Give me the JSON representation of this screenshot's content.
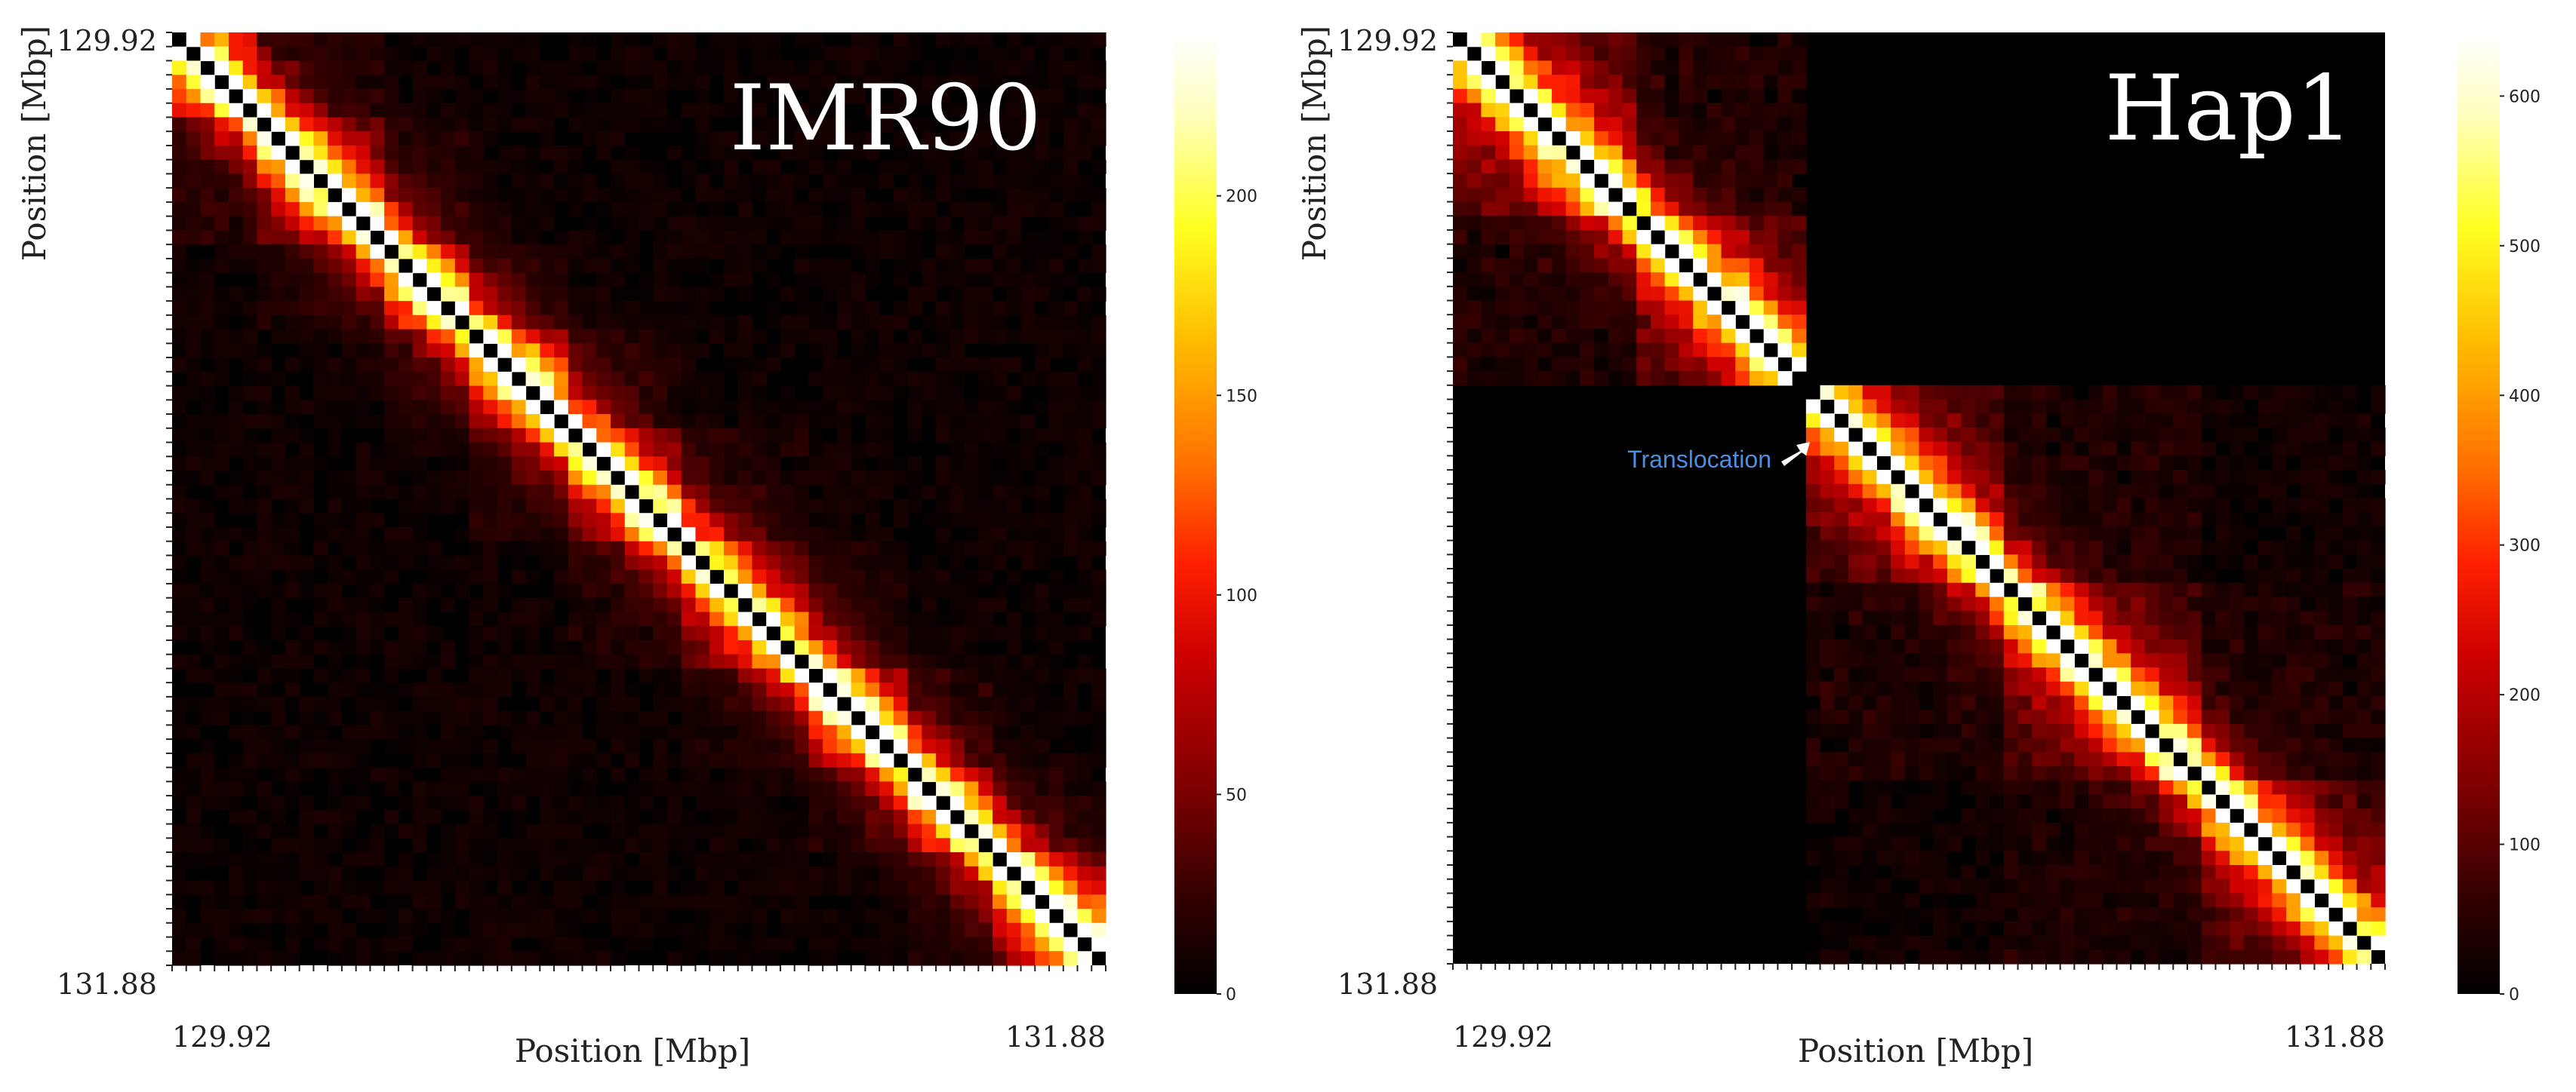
{
  "figure": {
    "panels": [
      {
        "title": "IMR90",
        "xlabel": "Position [Mbp]",
        "ylabel": "Position [Mbp]",
        "x_ticks": [
          "129.92",
          "131.88"
        ],
        "y_ticks": [
          "129.92",
          "131.88"
        ],
        "colorbar_ticks": [
          "0",
          "50",
          "100",
          "150",
          "200"
        ],
        "annotation": ""
      },
      {
        "title": "Hap1",
        "xlabel": "Position [Mbp]",
        "ylabel": "Position [Mbp]",
        "x_ticks": [
          "129.92",
          "131.88"
        ],
        "y_ticks": [
          "129.92",
          "131.88"
        ],
        "colorbar_ticks": [
          "0",
          "100",
          "200",
          "300",
          "400",
          "500",
          "600"
        ],
        "annotation": "Translocation"
      }
    ]
  },
  "colors": {
    "colormap": [
      "#000000",
      "#330000",
      "#800000",
      "#cc0000",
      "#ff2000",
      "#ff7000",
      "#ffbb00",
      "#ffff20",
      "#ffffc0",
      "#ffffff"
    ],
    "annotation_text": "#4a90e2",
    "annotation_arrow": "#ffffff"
  },
  "chart_data": [
    {
      "type": "heatmap",
      "title": "IMR90",
      "xlabel": "Position [Mbp]",
      "ylabel": "Position [Mbp]",
      "xlim": [
        129.92,
        131.88
      ],
      "ylim": [
        129.92,
        131.88
      ],
      "bins": 66,
      "value_range": [
        0,
        240
      ],
      "colormap": "hot",
      "diagonal_value": 0,
      "near_diagonal_peak": 210,
      "background_level": 8,
      "tads": [
        {
          "start": 129.92,
          "end": 130.1,
          "mean_contacts": 60
        },
        {
          "start": 130.1,
          "end": 130.37,
          "mean_contacts": 45
        },
        {
          "start": 130.37,
          "end": 130.55,
          "mean_contacts": 40
        },
        {
          "start": 130.55,
          "end": 130.78,
          "mean_contacts": 55
        },
        {
          "start": 130.78,
          "end": 131.0,
          "mean_contacts": 40
        },
        {
          "start": 131.0,
          "end": 131.26,
          "mean_contacts": 35
        },
        {
          "start": 131.26,
          "end": 131.48,
          "mean_contacts": 55
        },
        {
          "start": 131.48,
          "end": 131.65,
          "mean_contacts": 45
        },
        {
          "start": 131.65,
          "end": 131.88,
          "mean_contacts": 60
        }
      ],
      "colorbar": {
        "min": 0,
        "max": 240,
        "ticks": [
          0,
          50,
          100,
          150,
          200
        ]
      }
    },
    {
      "type": "heatmap",
      "title": "Hap1",
      "xlabel": "Position [Mbp]",
      "ylabel": "Position [Mbp]",
      "xlim": [
        129.92,
        131.88
      ],
      "ylim": [
        129.92,
        131.88
      ],
      "bins": 66,
      "value_range": [
        0,
        640
      ],
      "colormap": "hot",
      "diagonal_value": 0,
      "near_diagonal_peak": 560,
      "background_level": 25,
      "translocation_breakpoint": 130.69,
      "tads": [
        {
          "start": 129.92,
          "end": 130.31,
          "mean_contacts": 150
        },
        {
          "start": 130.31,
          "end": 130.69,
          "mean_contacts": 140
        },
        {
          "start": 130.69,
          "end": 131.1,
          "mean_contacts": 130
        },
        {
          "start": 131.1,
          "end": 131.5,
          "mean_contacts": 120
        },
        {
          "start": 131.5,
          "end": 131.88,
          "mean_contacts": 110
        }
      ],
      "colorbar": {
        "min": 0,
        "max": 640,
        "ticks": [
          0,
          100,
          200,
          300,
          400,
          500,
          600
        ]
      }
    }
  ]
}
